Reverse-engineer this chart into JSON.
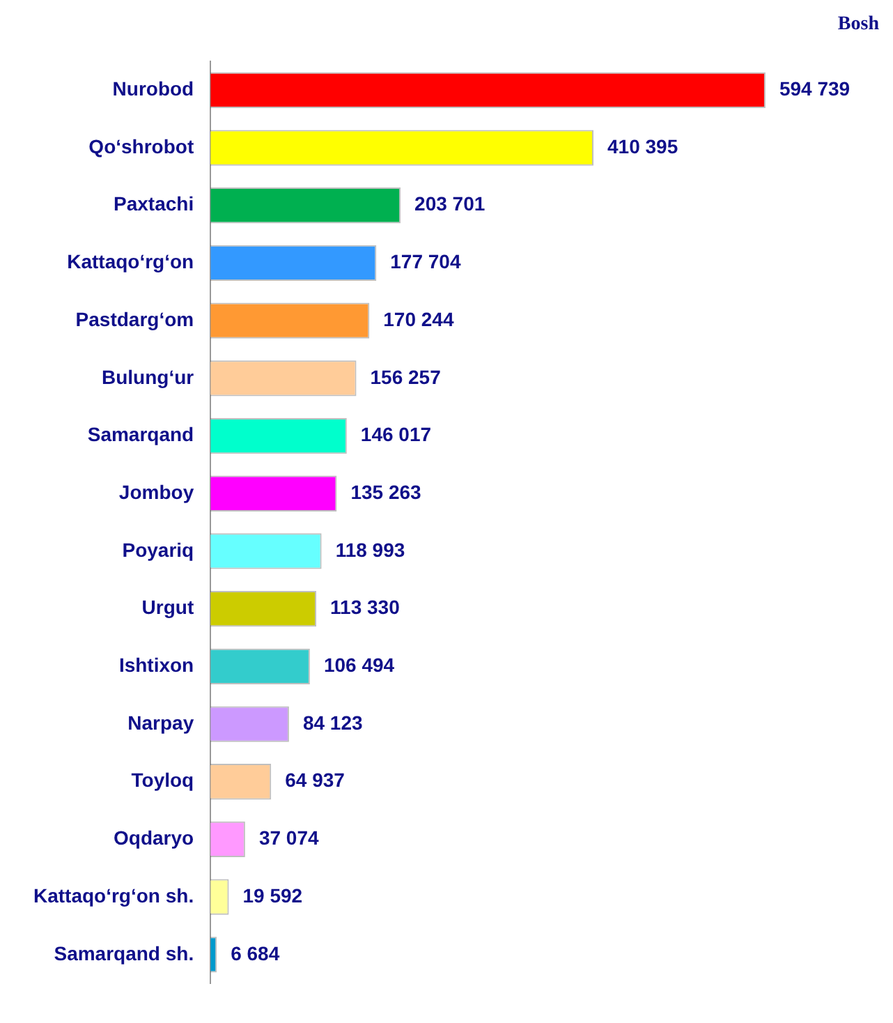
{
  "chart_data": {
    "type": "bar",
    "orientation": "horizontal",
    "annotations": [
      "Bosh"
    ],
    "categories": [
      "Nurobod",
      "Qo‘shrobot",
      "Paxtachi",
      "Kattaqo‘rg‘on",
      "Pastdarg‘om",
      "Bulung‘ur",
      "Samarqand",
      "Jomboy",
      "Poyariq",
      "Urgut",
      "Ishtixon",
      "Narpay",
      "Toyloq",
      "Oqdaryo",
      "Kattaqo‘rg‘on sh.",
      "Samarqand sh."
    ],
    "values": [
      594739,
      410395,
      203701,
      177704,
      170244,
      156257,
      146017,
      135263,
      118993,
      113330,
      106494,
      84123,
      64937,
      37074,
      19592,
      6684
    ],
    "value_labels": [
      "594 739",
      "410 395",
      "203 701",
      "177 704",
      "170 244",
      "156 257",
      "146 017",
      "135 263",
      "118 993",
      "113 330",
      "106 494",
      "84 123",
      "64 937",
      "37 074",
      "19 592",
      "6 684"
    ],
    "colors": [
      "#ff0000",
      "#ffff00",
      "#00b050",
      "#3399ff",
      "#ff9933",
      "#ffcc99",
      "#00ffcc",
      "#ff00ff",
      "#66ffff",
      "#cccc00",
      "#33cccc",
      "#cc99ff",
      "#ffcc99",
      "#ff99ff",
      "#ffff99",
      "#0099cc"
    ],
    "legend": false
  }
}
